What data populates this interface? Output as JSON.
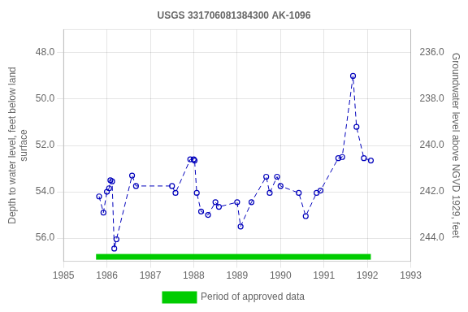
{
  "chart_data": {
    "type": "line",
    "title": "USGS 331706081384300 AK-1096",
    "ylabel": "Depth to water level, feet below land\nsurface",
    "y2label": "Groundwater level above NGVD 1929, feet",
    "x": [
      1985.82,
      1985.92,
      1986.0,
      1986.05,
      1986.08,
      1986.12,
      1986.17,
      1986.22,
      1986.58,
      1986.67,
      1987.5,
      1987.58,
      1987.92,
      1988.0,
      1988.02,
      1988.07,
      1988.17,
      1988.33,
      1988.5,
      1988.58,
      1989.0,
      1989.08,
      1989.33,
      1989.67,
      1989.75,
      1989.92,
      1990.0,
      1990.42,
      1990.58,
      1990.83,
      1990.92,
      1991.33,
      1991.42,
      1991.67,
      1991.75,
      1991.92,
      1992.08
    ],
    "series": [
      {
        "color": "#0000bb",
        "marker": "open_circle",
        "line_style": "dashed",
        "values": [
          54.2,
          54.9,
          54.0,
          53.85,
          53.5,
          53.55,
          56.45,
          56.05,
          53.3,
          53.75,
          53.75,
          54.05,
          52.6,
          52.6,
          52.65,
          54.05,
          54.85,
          55.0,
          54.45,
          54.65,
          54.45,
          55.5,
          54.45,
          53.35,
          54.05,
          53.35,
          53.75,
          54.05,
          55.05,
          54.05,
          53.95,
          52.55,
          52.5,
          49.0,
          51.2,
          52.55,
          52.65
        ]
      },
      {
        "name": "Period of approved data",
        "type": "span",
        "color": "#00cc00",
        "x": [
          1985.75,
          1992.08
        ]
      }
    ],
    "xlim": [
      1985,
      1993
    ],
    "xticks": [
      1985,
      1986,
      1987,
      1988,
      1989,
      1990,
      1991,
      1992,
      1993
    ],
    "ylim": [
      57.0,
      47.0
    ],
    "yticks": [
      {
        "value": 48.0,
        "label": "48.0"
      },
      {
        "value": 50.0,
        "label": "50.0"
      },
      {
        "value": 52.0,
        "label": "52.0"
      },
      {
        "value": 54.0,
        "label": "54.0"
      },
      {
        "value": 56.0,
        "label": "56.0"
      }
    ],
    "y2lim": [
      245.0,
      235.0
    ],
    "y2ticks": [
      {
        "value": 244.0,
        "label": "244.0"
      },
      {
        "value": 242.0,
        "label": "242.0"
      },
      {
        "value": 240.0,
        "label": "240.0"
      },
      {
        "value": 238.0,
        "label": "238.0"
      },
      {
        "value": 236.0,
        "label": "236.0"
      }
    ],
    "grid": true,
    "legend": "bottom"
  }
}
